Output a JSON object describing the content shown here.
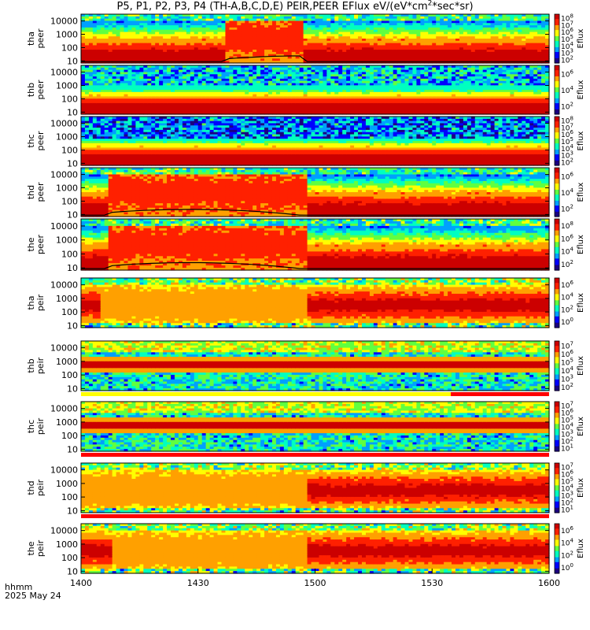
{
  "figure": {
    "title_html": "P5, P1, P2, P3, P4 (TH-A,B,C,D,E) PEIR,PEER EFlux eV/(eV*cm<sup>2</sup>*sec*sr)",
    "x_label_line1": "hhmm",
    "x_label_line2": "2025 May 24"
  },
  "colors": {
    "colormap": [
      "#1a0080",
      "#0000ff",
      "#00a0ff",
      "#00ffc0",
      "#60ff40",
      "#ffff00",
      "#ffa000",
      "#ff2000",
      "#cc0000"
    ],
    "density_line": "#000000",
    "gap_bar": "#ff0000",
    "cap_bar": "#ffff00"
  },
  "chart_data": {
    "type": "heatmap",
    "x_ticks": [
      "1400",
      "1430",
      "1500",
      "1530",
      "1600"
    ],
    "x_range": [
      "14:00",
      "16:00"
    ],
    "y_ticks": [
      "10",
      "100",
      "1000",
      "10000"
    ],
    "y_scale": "log",
    "y_range_eV": [
      7,
      32000
    ],
    "colorbar_label": "Eflux",
    "panels": [
      {
        "probe": "tha",
        "species": "peer",
        "label_line1": "tha",
        "label_line2": "peer",
        "cbar_ticks": [
          "10^2",
          "10^3",
          "10^4",
          "10^5",
          "10^6",
          "10^7",
          "10^8"
        ],
        "pattern": "electron_sheet",
        "bright_block": [
          0.305,
          0.478
        ],
        "sc_potential": true,
        "gaps": []
      },
      {
        "probe": "thb",
        "species": "peer",
        "label_line1": "thb",
        "label_line2": "peer",
        "cbar_ticks": [
          "10^2",
          "10^4",
          "10^6"
        ],
        "pattern": "electron_wind",
        "bright_block": null,
        "sc_potential": false,
        "gaps": []
      },
      {
        "probe": "thc",
        "species": "peer",
        "label_line1": "thc",
        "label_line2": "peer",
        "cbar_ticks": [
          "10^2",
          "10^3",
          "10^4",
          "10^5",
          "10^6",
          "10^7",
          "10^8"
        ],
        "pattern": "electron_wind_noisy",
        "bright_block": null,
        "sc_potential": false,
        "gaps": []
      },
      {
        "probe": "thd",
        "species": "peer",
        "label_line1": "thd",
        "label_line2": "peer",
        "cbar_ticks": [
          "10^2",
          "10^4",
          "10^6"
        ],
        "pattern": "electron_sheet",
        "bright_block": [
          0.06,
          0.48
        ],
        "sc_potential": true,
        "gaps": []
      },
      {
        "probe": "the",
        "species": "peer",
        "label_line1": "the",
        "label_line2": "peer",
        "cbar_ticks": [
          "10^2",
          "10^4",
          "10^6",
          "10^8"
        ],
        "pattern": "electron_sheet",
        "bright_block": [
          0.06,
          0.48
        ],
        "sc_potential": true,
        "gaps": []
      },
      {
        "probe": "tha",
        "species": "peir",
        "label_line1": "tha",
        "label_line2": "peir",
        "cbar_ticks": [
          "10^0",
          "10^2",
          "10^4",
          "10^6"
        ],
        "pattern": "ion_sheet",
        "bright_block": [
          0.04,
          0.48
        ],
        "sc_potential": false,
        "gaps": []
      },
      {
        "probe": "thb",
        "species": "peir",
        "label_line1": "thb",
        "label_line2": "peir",
        "cbar_ticks": [
          "10^2",
          "10^3",
          "10^4",
          "10^5",
          "10^6",
          "10^7"
        ],
        "pattern": "ion_wind",
        "bright_block": null,
        "sc_potential": false,
        "gaps": [
          0.79,
          1.0
        ]
      },
      {
        "probe": "thc",
        "species": "peir",
        "label_line1": "thc",
        "label_line2": "peir",
        "cbar_ticks": [
          "10^1",
          "10^2",
          "10^3",
          "10^4",
          "10^5",
          "10^6",
          "10^7"
        ],
        "pattern": "ion_wind",
        "bright_block": null,
        "sc_potential": false,
        "gaps": [
          0.0,
          1.0
        ]
      },
      {
        "probe": "thd",
        "species": "peir",
        "label_line1": "thd",
        "label_line2": "peir",
        "cbar_ticks": [
          "10^1",
          "10^2",
          "10^3",
          "10^4",
          "10^5",
          "10^6",
          "10^7"
        ],
        "pattern": "ion_sheet",
        "bright_block": [
          0.0,
          0.48
        ],
        "sc_potential": false,
        "gaps": [
          0.0,
          1.0
        ]
      },
      {
        "probe": "the",
        "species": "peir",
        "label_line1": "the",
        "label_line2": "peir",
        "cbar_ticks": [
          "10^0",
          "10^2",
          "10^4",
          "10^6"
        ],
        "pattern": "ion_sheet",
        "bright_block": [
          0.07,
          0.48
        ],
        "sc_potential": false,
        "gaps": []
      }
    ]
  }
}
